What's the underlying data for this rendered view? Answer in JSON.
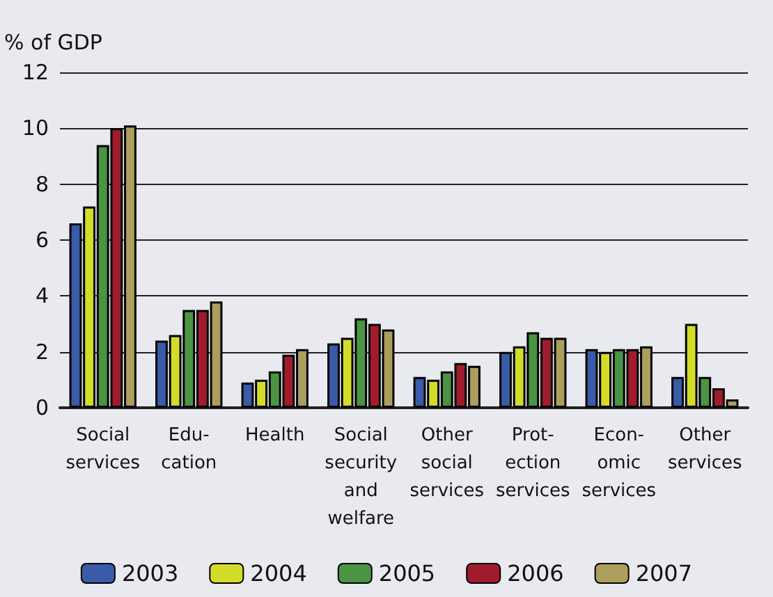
{
  "chart_data": {
    "type": "bar",
    "ylabel": "% of GDP",
    "categories": [
      "Social\nservices",
      "Edu-\ncation",
      "Health",
      "Social\nsecurity\nand\nwelfare",
      "Other\nsocial\nservices",
      "Prot-\nection\nservices",
      "Econ-\nomic\nservices",
      "Other\nservices"
    ],
    "series": [
      {
        "name": "2003",
        "color": "#3a5ba8",
        "values": [
          6.6,
          2.4,
          0.9,
          2.3,
          1.1,
          2.0,
          2.1,
          1.1
        ]
      },
      {
        "name": "2004",
        "color": "#d4dc2a",
        "values": [
          7.2,
          2.6,
          1.0,
          2.5,
          1.0,
          2.2,
          2.0,
          3.0
        ]
      },
      {
        "name": "2005",
        "color": "#4a9444",
        "values": [
          9.4,
          3.5,
          1.3,
          3.2,
          1.3,
          2.7,
          2.1,
          1.1
        ]
      },
      {
        "name": "2006",
        "color": "#a01c2c",
        "values": [
          10.0,
          3.5,
          1.9,
          3.0,
          1.6,
          2.5,
          2.1,
          0.7
        ]
      },
      {
        "name": "2007",
        "color": "#ac9e5c",
        "values": [
          10.1,
          3.8,
          2.1,
          2.8,
          1.5,
          2.5,
          2.2,
          0.3
        ]
      }
    ],
    "ylim": [
      0,
      12
    ],
    "yticks": [
      0,
      2,
      4,
      6,
      8,
      10,
      12
    ],
    "grid": "y",
    "legend": "bottom"
  }
}
